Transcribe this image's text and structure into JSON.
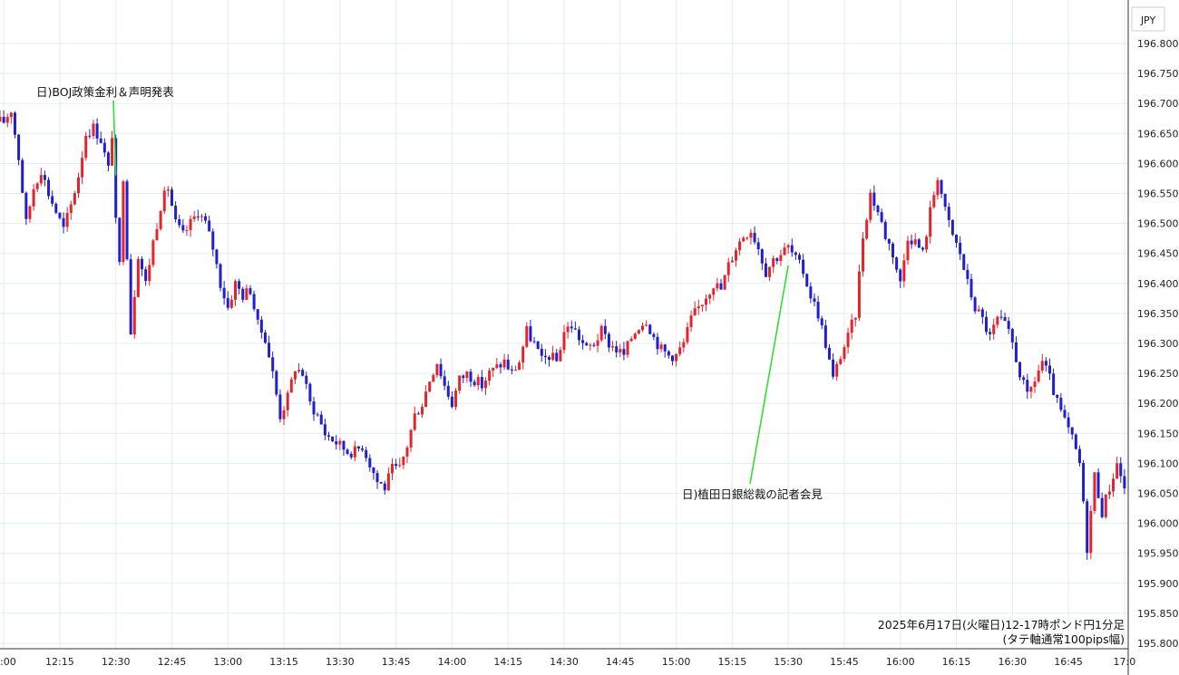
{
  "chart_data": {
    "type": "candlestick",
    "currency_label": "JPY",
    "caption_line1": "2025年6月17日(火曜日)12-17時ポンド円1分足",
    "caption_line2": "(タテ軸通常100pips幅)",
    "x_ticks": [
      ":00",
      "12:15",
      "12:30",
      "12:45",
      "13:00",
      "13:15",
      "13:30",
      "13:45",
      "14:00",
      "14:15",
      "14:30",
      "14:45",
      "15:00",
      "15:15",
      "15:30",
      "15:45",
      "16:00",
      "16:15",
      "16:30",
      "16:45",
      "17:0"
    ],
    "y_ticks": [
      "196.800",
      "196.750",
      "196.700",
      "196.650",
      "196.600",
      "196.550",
      "196.500",
      "196.450",
      "196.400",
      "196.350",
      "196.300",
      "196.250",
      "196.200",
      "196.150",
      "196.100",
      "196.050",
      "196.000",
      "195.950",
      "195.900",
      "195.850",
      "195.800"
    ],
    "ylim": [
      195.8,
      196.8
    ],
    "x_minutes_range": [
      -1,
      301
    ],
    "annotations": [
      {
        "text": "日)BOJ政策金利＆声明発表",
        "time": "12:30",
        "price": 196.58
      },
      {
        "text": "日)植田日銀総裁の記者会見",
        "time": "15:30",
        "price": 196.43
      }
    ],
    "colors": {
      "up": "#e3242b",
      "down": "#1f1fd0",
      "annotation_line": "#33dd33",
      "grid": "#e3ecf1"
    },
    "path_points": [
      [
        0,
        196.67
      ],
      [
        2,
        196.69
      ],
      [
        4,
        196.61
      ],
      [
        6,
        196.5
      ],
      [
        8,
        196.56
      ],
      [
        10,
        196.59
      ],
      [
        12,
        196.55
      ],
      [
        14,
        196.52
      ],
      [
        16,
        196.49
      ],
      [
        18,
        196.53
      ],
      [
        20,
        196.58
      ],
      [
        22,
        196.65
      ],
      [
        24,
        196.66
      ],
      [
        26,
        196.64
      ],
      [
        28,
        196.59
      ],
      [
        29,
        196.65
      ],
      [
        30,
        196.5
      ],
      [
        31,
        196.43
      ],
      [
        32,
        196.58
      ],
      [
        34,
        196.32
      ],
      [
        36,
        196.45
      ],
      [
        38,
        196.4
      ],
      [
        40,
        196.47
      ],
      [
        42,
        196.53
      ],
      [
        44,
        196.56
      ],
      [
        46,
        196.5
      ],
      [
        48,
        196.48
      ],
      [
        50,
        196.5
      ],
      [
        52,
        196.52
      ],
      [
        54,
        196.5
      ],
      [
        56,
        196.46
      ],
      [
        58,
        196.4
      ],
      [
        60,
        196.36
      ],
      [
        62,
        196.4
      ],
      [
        64,
        196.38
      ],
      [
        66,
        196.39
      ],
      [
        68,
        196.33
      ],
      [
        70,
        196.31
      ],
      [
        72,
        196.25
      ],
      [
        74,
        196.18
      ],
      [
        76,
        196.21
      ],
      [
        78,
        196.26
      ],
      [
        80,
        196.25
      ],
      [
        82,
        196.2
      ],
      [
        84,
        196.18
      ],
      [
        86,
        196.15
      ],
      [
        88,
        196.14
      ],
      [
        90,
        196.13
      ],
      [
        92,
        196.12
      ],
      [
        94,
        196.12
      ],
      [
        96,
        196.13
      ],
      [
        98,
        196.1
      ],
      [
        100,
        196.07
      ],
      [
        102,
        196.06
      ],
      [
        104,
        196.09
      ],
      [
        106,
        196.09
      ],
      [
        108,
        196.13
      ],
      [
        110,
        196.18
      ],
      [
        112,
        196.2
      ],
      [
        114,
        196.24
      ],
      [
        116,
        196.27
      ],
      [
        118,
        196.23
      ],
      [
        120,
        196.2
      ],
      [
        122,
        196.24
      ],
      [
        124,
        196.25
      ],
      [
        126,
        196.24
      ],
      [
        128,
        196.23
      ],
      [
        130,
        196.25
      ],
      [
        132,
        196.26
      ],
      [
        134,
        196.27
      ],
      [
        136,
        196.25
      ],
      [
        138,
        196.27
      ],
      [
        140,
        196.32
      ],
      [
        142,
        196.3
      ],
      [
        144,
        196.27
      ],
      [
        146,
        196.28
      ],
      [
        148,
        196.27
      ],
      [
        150,
        196.32
      ],
      [
        152,
        196.33
      ],
      [
        154,
        196.31
      ],
      [
        156,
        196.29
      ],
      [
        158,
        196.3
      ],
      [
        160,
        196.32
      ],
      [
        162,
        196.3
      ],
      [
        164,
        196.29
      ],
      [
        166,
        196.28
      ],
      [
        168,
        196.31
      ],
      [
        170,
        196.33
      ],
      [
        172,
        196.34
      ],
      [
        174,
        196.31
      ],
      [
        176,
        196.29
      ],
      [
        178,
        196.28
      ],
      [
        180,
        196.28
      ],
      [
        182,
        196.3
      ],
      [
        184,
        196.34
      ],
      [
        186,
        196.36
      ],
      [
        188,
        196.38
      ],
      [
        190,
        196.4
      ],
      [
        192,
        196.39
      ],
      [
        194,
        196.43
      ],
      [
        196,
        196.46
      ],
      [
        198,
        196.48
      ],
      [
        200,
        196.49
      ],
      [
        202,
        196.46
      ],
      [
        204,
        196.42
      ],
      [
        206,
        196.44
      ],
      [
        208,
        196.45
      ],
      [
        210,
        196.46
      ],
      [
        212,
        196.44
      ],
      [
        214,
        196.42
      ],
      [
        216,
        196.38
      ],
      [
        218,
        196.35
      ],
      [
        220,
        196.3
      ],
      [
        222,
        196.24
      ],
      [
        224,
        196.28
      ],
      [
        226,
        196.31
      ],
      [
        228,
        196.35
      ],
      [
        230,
        196.48
      ],
      [
        232,
        196.55
      ],
      [
        234,
        196.52
      ],
      [
        236,
        196.48
      ],
      [
        238,
        196.45
      ],
      [
        240,
        196.4
      ],
      [
        242,
        196.48
      ],
      [
        244,
        196.47
      ],
      [
        246,
        196.45
      ],
      [
        248,
        196.52
      ],
      [
        250,
        196.58
      ],
      [
        252,
        196.52
      ],
      [
        254,
        196.48
      ],
      [
        256,
        196.45
      ],
      [
        258,
        196.4
      ],
      [
        260,
        196.36
      ],
      [
        262,
        196.34
      ],
      [
        264,
        196.31
      ],
      [
        266,
        196.34
      ],
      [
        268,
        196.33
      ],
      [
        270,
        196.3
      ],
      [
        272,
        196.25
      ],
      [
        274,
        196.21
      ],
      [
        276,
        196.24
      ],
      [
        278,
        196.27
      ],
      [
        280,
        196.24
      ],
      [
        282,
        196.2
      ],
      [
        284,
        196.17
      ],
      [
        286,
        196.14
      ],
      [
        288,
        196.1
      ],
      [
        290,
        195.96
      ],
      [
        292,
        196.08
      ],
      [
        294,
        196.02
      ],
      [
        296,
        196.06
      ],
      [
        298,
        196.1
      ],
      [
        300,
        196.06
      ],
      [
        301,
        196.1
      ]
    ]
  }
}
